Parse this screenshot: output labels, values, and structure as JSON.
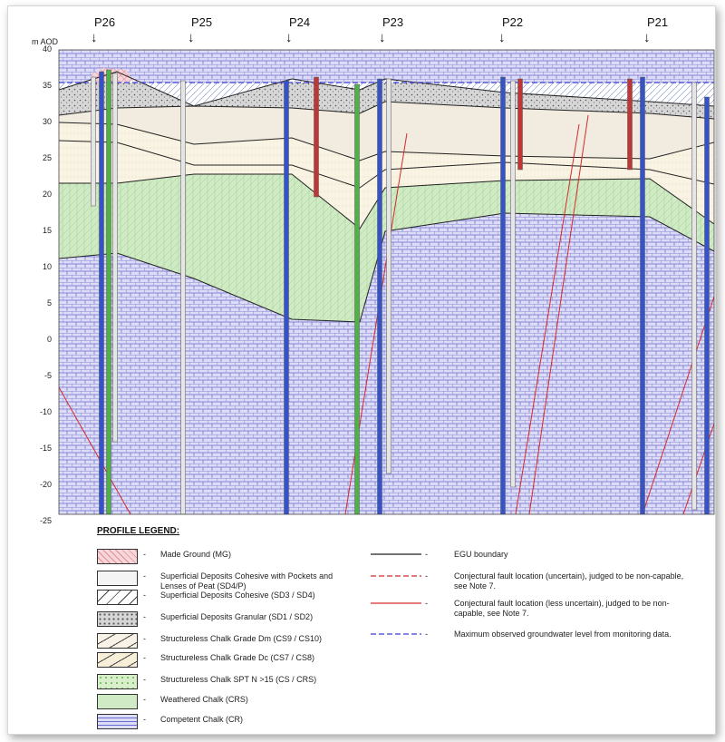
{
  "axis": {
    "title": "m AOD",
    "ticks": [
      "40",
      "35",
      "30",
      "25",
      "20",
      "15",
      "10",
      "5",
      "0",
      "-5",
      "-10",
      "-15",
      "-20",
      "-25"
    ]
  },
  "profiles": [
    "P26",
    "P25",
    "P24",
    "P23",
    "P22",
    "P21"
  ],
  "legend": {
    "title": "PROFILE LEGEND:",
    "dash": "-",
    "units": [
      {
        "label": "Made Ground (MG)",
        "color": "#f6d6d9"
      },
      {
        "label": "Superficial Deposits Cohesive with Pockets and Lenses of Peat (SD4/P)",
        "color": "#f4f4f4"
      },
      {
        "label": "Superficial Deposits Cohesive (SD3 / SD4)",
        "color": "#e6e6e6"
      },
      {
        "label": "Superficial Deposits Granular (SD1 / SD2)",
        "color": "#c9c9c9"
      },
      {
        "label": "Structureless Chalk Grade Dm (CS9 / CS10)",
        "color": "#f8f3e6"
      },
      {
        "label": "Structureless Chalk Grade Dc (CS7 / CS8)",
        "color": "#f7efd7"
      },
      {
        "label": "Structureless Chalk SPT N >15 (CS / CRS)",
        "color": "#d9efcc"
      },
      {
        "label": "Weathered Chalk (CRS)",
        "color": "#cfeac4"
      },
      {
        "label": "Competent Chalk (CR)",
        "color": "#dcdcf5"
      }
    ],
    "lines": [
      {
        "label": "EGU boundary",
        "color": "#222222",
        "style": "solid"
      },
      {
        "label": "Conjectural fault location (uncertain), judged to be non-capable, see Note 7.",
        "color": "#d42a2a",
        "style": "dashed"
      },
      {
        "label": "Conjectural fault location (less uncertain), judged to be non-capable, see Note 7.",
        "color": "#d42a2a",
        "style": "solid"
      },
      {
        "label": "Maximum observed groundwater level from monitoring data.",
        "color": "#3a3ad8",
        "style": "dashed"
      }
    ]
  }
}
